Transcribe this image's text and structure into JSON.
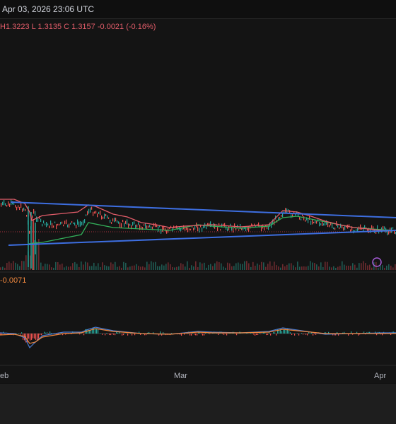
{
  "header": {
    "timestamp": "Apr 03, 2026 23:06 UTC"
  },
  "ohlc": {
    "high": "H1.3223",
    "low": "L 1.3135",
    "close": "C 1.3157",
    "change": "-0.0021 (-0.16%)"
  },
  "macd": {
    "value": "-0.0071"
  },
  "time_axis": {
    "labels": [
      "eb",
      "Mar",
      "Apr"
    ]
  },
  "colors": {
    "price_line": "#e35d6a",
    "trend_line": "#3d6ee0",
    "green_line": "#33b05a",
    "macd_blue": "#4a7bd0",
    "macd_orange": "#f0883e"
  }
}
